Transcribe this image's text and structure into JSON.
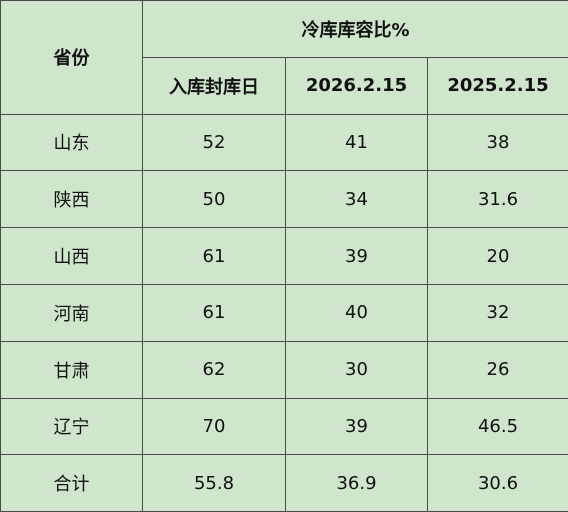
{
  "table": {
    "header": {
      "row_label": "省份",
      "group": "冷库库容比%",
      "columns": [
        "入库封库日",
        "2026.2.15",
        "2025.2.15"
      ]
    },
    "rows": [
      [
        "山东",
        52,
        41,
        38
      ],
      [
        "陕西",
        50,
        34,
        31.6
      ],
      [
        "山西",
        61,
        39,
        20
      ],
      [
        "河南",
        61,
        40,
        32
      ],
      [
        "甘肃",
        62,
        30,
        26
      ],
      [
        "辽宁",
        70,
        39,
        46.5
      ],
      [
        "合计",
        55.8,
        36.9,
        30.6
      ]
    ]
  }
}
